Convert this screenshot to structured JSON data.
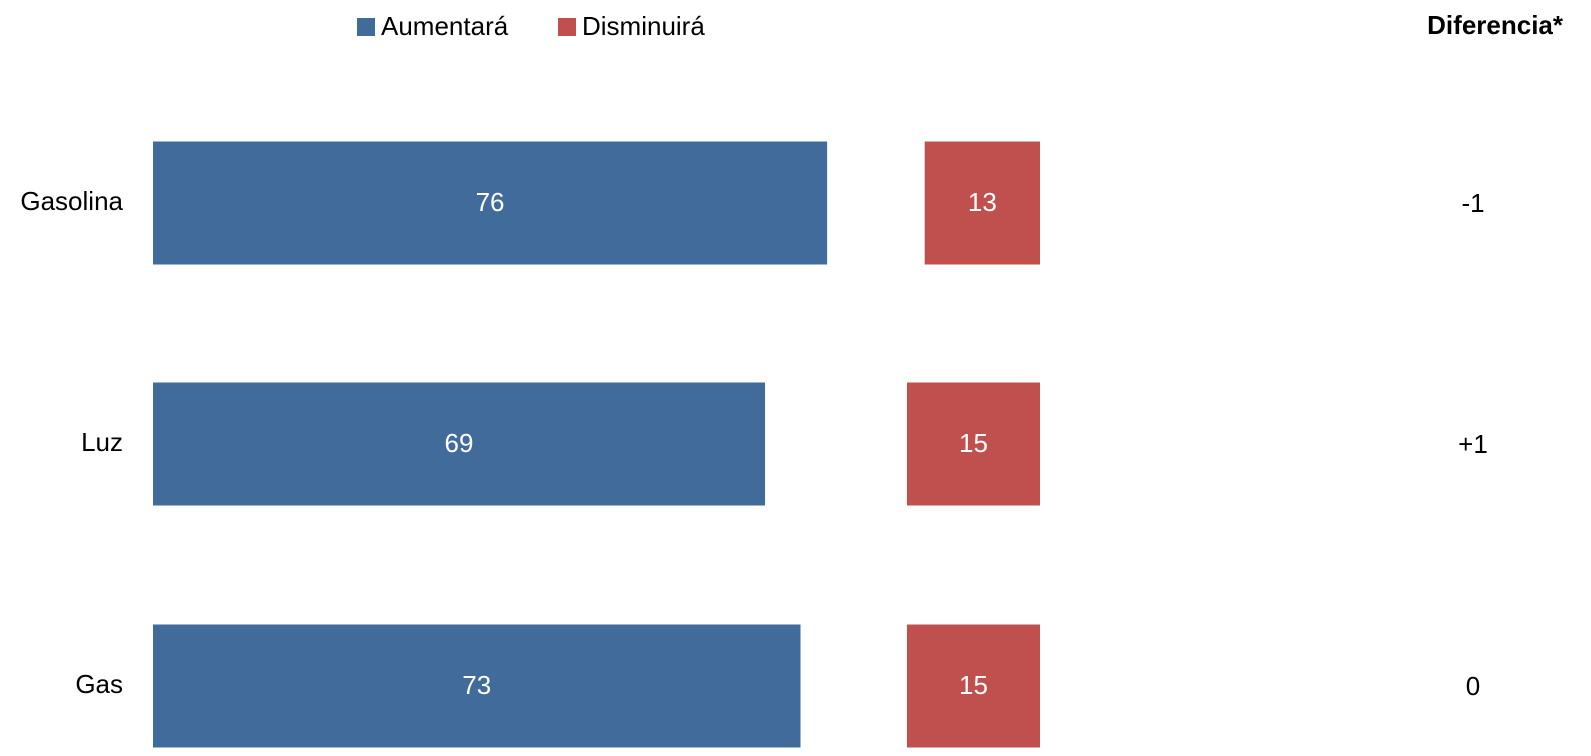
{
  "chart_data": {
    "type": "bar",
    "orientation": "horizontal",
    "categories": [
      "Gasolina",
      "Luz",
      "Gas"
    ],
    "series": [
      {
        "name": "Aumentará",
        "color": "#416b9b",
        "values": [
          76,
          69,
          73
        ]
      },
      {
        "name": "Disminuirá",
        "color": "#c0504e",
        "values": [
          13,
          15,
          15
        ]
      }
    ],
    "xlim": [
      0,
      100
    ],
    "legend": "top",
    "difference": {
      "title": "Diferencia*",
      "values": [
        "-1",
        "+1",
        "0"
      ]
    }
  }
}
